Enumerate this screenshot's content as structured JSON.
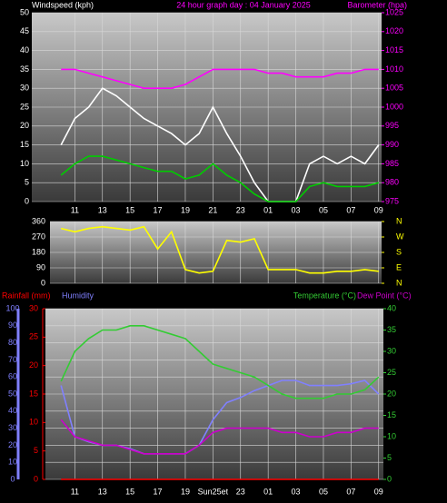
{
  "chart_data": [
    {
      "type": "line",
      "title": "24 hour graph day : 04 January 2025",
      "y_label": "Windspeed (kph)",
      "y2_label": "Barometer (hpa)",
      "categories": [
        null,
        "11",
        null,
        "13",
        null,
        "15",
        null,
        "17",
        null,
        "19",
        null,
        "21",
        null,
        "23",
        null,
        "01",
        null,
        "03",
        null,
        "05",
        null,
        "07",
        null,
        "09"
      ],
      "series": [
        {
          "color": "#ffffff",
          "values": [
            15,
            22,
            25,
            30,
            28,
            25,
            22,
            20,
            18,
            15,
            18,
            25,
            18,
            12,
            5,
            0,
            0,
            0,
            10,
            12,
            10,
            12,
            10,
            15
          ]
        },
        {
          "color": "#00cc00",
          "values": [
            7,
            10,
            12,
            12,
            11,
            10,
            9,
            8,
            8,
            6,
            7,
            10,
            7,
            5,
            2,
            0,
            0,
            0,
            4,
            5,
            4,
            4,
            4,
            5
          ]
        },
        {
          "color": "#ff00ff",
          "axis": "y2",
          "values": [
            1010,
            1010,
            1009,
            1008,
            1007,
            1006,
            1005,
            1005,
            1005,
            1006,
            1008,
            1010,
            1010,
            1010,
            1010,
            1009,
            1009,
            1008,
            1008,
            1008,
            1009,
            1009,
            1010,
            1010
          ]
        }
      ],
      "ylim": [
        0,
        50
      ],
      "yticks": [
        0,
        5,
        10,
        15,
        20,
        25,
        30,
        35,
        40,
        45,
        50
      ],
      "y2lim": [
        975,
        1025
      ],
      "y2ticks": [
        975,
        980,
        985,
        990,
        995,
        1000,
        1005,
        1010,
        1015,
        1020,
        1025
      ],
      "grid": true
    },
    {
      "type": "line",
      "series": [
        {
          "color": "#ffff00",
          "values": [
            320,
            300,
            320,
            330,
            320,
            310,
            330,
            200,
            300,
            80,
            60,
            70,
            250,
            240,
            260,
            80,
            80,
            80,
            60,
            60,
            70,
            70,
            80,
            70
          ]
        }
      ],
      "ylim": [
        0,
        360
      ],
      "yticks": [
        0,
        90,
        180,
        270,
        360
      ],
      "y2lim": [
        0,
        360
      ],
      "y2ticks": [
        {
          "value": 360,
          "label": "N"
        },
        {
          "value": 270,
          "label": "W"
        },
        {
          "value": 180,
          "label": "S"
        },
        {
          "value": 90,
          "label": "E"
        },
        {
          "value": 0,
          "label": "N"
        }
      ],
      "grid": true
    },
    {
      "type": "line",
      "categories": [
        null,
        "11",
        null,
        "13",
        null,
        "15",
        null,
        "17",
        null,
        "19",
        null,
        "Sun25et",
        null,
        "23",
        null,
        "01",
        null,
        "03",
        null,
        "05",
        null,
        "07",
        null,
        "09"
      ],
      "series": [
        {
          "name": "Rainfall (mm)",
          "color": "#ff0000",
          "axis": "y3",
          "values": [
            0,
            0,
            0,
            0,
            0,
            0,
            0,
            0,
            0,
            0,
            0,
            0,
            0,
            0,
            0,
            0,
            0,
            0,
            0,
            0,
            0,
            0,
            0,
            0
          ]
        },
        {
          "name": "Humidity",
          "color": "#8080ff",
          "values": [
            55,
            25,
            22,
            20,
            20,
            18,
            15,
            15,
            15,
            15,
            20,
            35,
            45,
            48,
            52,
            55,
            58,
            58,
            55,
            55,
            55,
            56,
            58,
            50
          ]
        },
        {
          "name": "Temperature (°C)",
          "color": "#33cc33",
          "axis": "y2",
          "values": [
            23,
            30,
            33,
            35,
            35,
            36,
            36,
            35,
            34,
            33,
            30,
            27,
            26,
            25,
            24,
            22,
            20,
            19,
            19,
            19,
            20,
            20,
            21,
            24
          ]
        },
        {
          "name": "Dew Point (°C)",
          "color": "#cc00cc",
          "axis": "y2",
          "values": [
            14,
            10,
            9,
            8,
            8,
            7,
            6,
            6,
            6,
            6,
            8,
            11,
            12,
            12,
            12,
            12,
            11,
            11,
            10,
            10,
            11,
            11,
            12,
            12
          ]
        }
      ],
      "ylim": [
        0,
        100
      ],
      "yticks": [
        0,
        10,
        20,
        30,
        40,
        50,
        60,
        70,
        80,
        90,
        100
      ],
      "y2lim": [
        0,
        40
      ],
      "y2ticks": [
        0,
        5,
        10,
        15,
        20,
        25,
        30,
        35,
        40
      ],
      "y3lim": [
        0,
        30
      ],
      "y3ticks": [
        0,
        5,
        10,
        15,
        20,
        25,
        30
      ],
      "grid": true
    }
  ]
}
